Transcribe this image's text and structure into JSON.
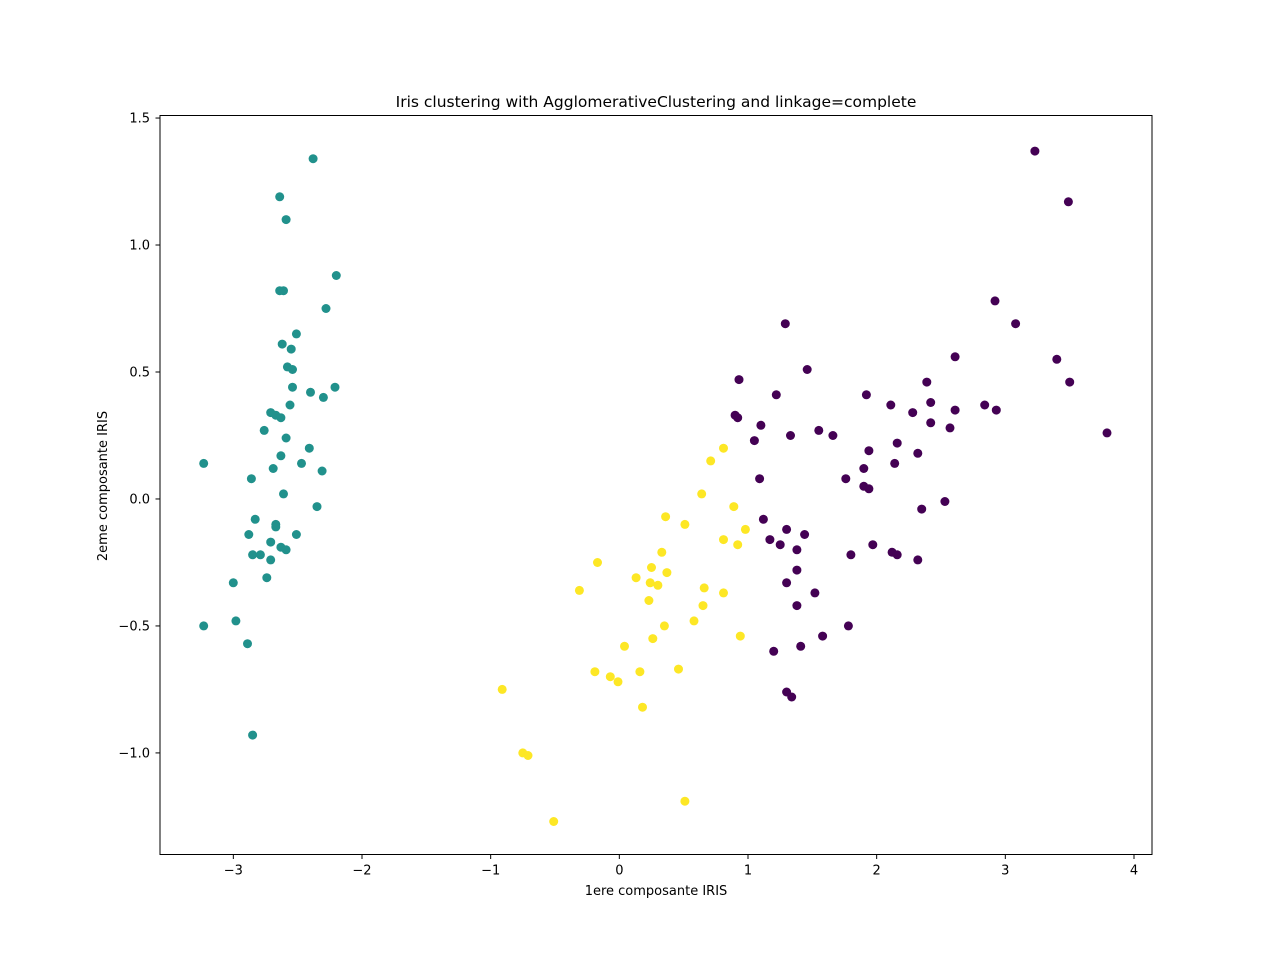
{
  "chart_data": {
    "type": "scatter",
    "title": "Iris clustering with AgglomerativeClustering and linkage=complete",
    "xlabel": "1ere composante IRIS",
    "ylabel": "2eme composante IRIS",
    "xlim": [
      -3.57,
      4.14
    ],
    "ylim": [
      -1.4,
      1.51
    ],
    "xticks": [
      -3,
      -2,
      -1,
      0,
      1,
      2,
      3,
      4
    ],
    "yticks": [
      -1.0,
      -0.5,
      0.0,
      0.5,
      1.0,
      1.5
    ],
    "xtick_labels": [
      "−3",
      "−2",
      "−1",
      "0",
      "1",
      "2",
      "3",
      "4"
    ],
    "ytick_labels": [
      "−1.0",
      "−0.5",
      "0.0",
      "0.5",
      "1.0",
      "1.5"
    ],
    "grid": false,
    "legend": "none",
    "series": [
      {
        "color": "#21918c",
        "points": [
          [
            -2.38,
            1.34
          ],
          [
            -2.64,
            1.19
          ],
          [
            -2.59,
            1.1
          ],
          [
            -2.2,
            0.88
          ],
          [
            -2.64,
            0.82
          ],
          [
            -2.61,
            0.82
          ],
          [
            -2.28,
            0.75
          ],
          [
            -2.51,
            0.65
          ],
          [
            -2.62,
            0.61
          ],
          [
            -2.55,
            0.59
          ],
          [
            -2.58,
            0.52
          ],
          [
            -2.54,
            0.51
          ],
          [
            -2.54,
            0.44
          ],
          [
            -2.21,
            0.44
          ],
          [
            -2.4,
            0.42
          ],
          [
            -2.3,
            0.4
          ],
          [
            -2.56,
            0.37
          ],
          [
            -2.71,
            0.34
          ],
          [
            -2.67,
            0.33
          ],
          [
            -2.63,
            0.32
          ],
          [
            -2.76,
            0.27
          ],
          [
            -2.59,
            0.24
          ],
          [
            -2.41,
            0.2
          ],
          [
            -3.23,
            0.14
          ],
          [
            -2.63,
            0.17
          ],
          [
            -2.47,
            0.14
          ],
          [
            -2.69,
            0.12
          ],
          [
            -2.31,
            0.11
          ],
          [
            -2.86,
            0.08
          ],
          [
            -2.61,
            0.02
          ],
          [
            -2.35,
            -0.03
          ],
          [
            -2.83,
            -0.08
          ],
          [
            -2.67,
            -0.1
          ],
          [
            -2.67,
            -0.11
          ],
          [
            -2.88,
            -0.14
          ],
          [
            -2.51,
            -0.14
          ],
          [
            -2.71,
            -0.17
          ],
          [
            -2.63,
            -0.19
          ],
          [
            -2.59,
            -0.2
          ],
          [
            -2.85,
            -0.22
          ],
          [
            -2.79,
            -0.22
          ],
          [
            -2.71,
            -0.24
          ],
          [
            -2.74,
            -0.31
          ],
          [
            -3.0,
            -0.33
          ],
          [
            -2.98,
            -0.48
          ],
          [
            -3.23,
            -0.5
          ],
          [
            -2.89,
            -0.57
          ],
          [
            -2.85,
            -0.93
          ]
        ]
      },
      {
        "color": "#fde725",
        "points": [
          [
            0.71,
            0.15
          ],
          [
            0.81,
            0.2
          ],
          [
            0.64,
            0.02
          ],
          [
            0.89,
            -0.03
          ],
          [
            0.36,
            -0.07
          ],
          [
            0.51,
            -0.1
          ],
          [
            0.98,
            -0.12
          ],
          [
            0.81,
            -0.16
          ],
          [
            0.92,
            -0.18
          ],
          [
            0.33,
            -0.21
          ],
          [
            -0.17,
            -0.25
          ],
          [
            0.25,
            -0.27
          ],
          [
            0.37,
            -0.29
          ],
          [
            0.13,
            -0.31
          ],
          [
            0.24,
            -0.33
          ],
          [
            0.3,
            -0.34
          ],
          [
            0.66,
            -0.35
          ],
          [
            -0.31,
            -0.36
          ],
          [
            0.81,
            -0.37
          ],
          [
            0.23,
            -0.4
          ],
          [
            0.65,
            -0.42
          ],
          [
            0.58,
            -0.48
          ],
          [
            0.35,
            -0.5
          ],
          [
            0.26,
            -0.55
          ],
          [
            0.94,
            -0.54
          ],
          [
            0.04,
            -0.58
          ],
          [
            0.46,
            -0.67
          ],
          [
            -0.19,
            -0.68
          ],
          [
            0.16,
            -0.68
          ],
          [
            -0.07,
            -0.7
          ],
          [
            -0.01,
            -0.72
          ],
          [
            -0.91,
            -0.75
          ],
          [
            0.18,
            -0.82
          ],
          [
            -0.75,
            -1.0
          ],
          [
            -0.71,
            -1.01
          ],
          [
            0.51,
            -1.19
          ],
          [
            -0.51,
            -1.27
          ]
        ]
      },
      {
        "color": "#440154",
        "points": [
          [
            3.23,
            1.37
          ],
          [
            3.49,
            1.17
          ],
          [
            2.92,
            0.78
          ],
          [
            1.29,
            0.69
          ],
          [
            3.08,
            0.69
          ],
          [
            2.61,
            0.56
          ],
          [
            3.4,
            0.55
          ],
          [
            1.46,
            0.51
          ],
          [
            0.93,
            0.47
          ],
          [
            2.39,
            0.46
          ],
          [
            3.5,
            0.46
          ],
          [
            1.22,
            0.41
          ],
          [
            1.92,
            0.41
          ],
          [
            2.42,
            0.38
          ],
          [
            2.11,
            0.37
          ],
          [
            2.84,
            0.37
          ],
          [
            2.93,
            0.35
          ],
          [
            2.61,
            0.35
          ],
          [
            2.28,
            0.34
          ],
          [
            0.9,
            0.33
          ],
          [
            0.92,
            0.32
          ],
          [
            2.42,
            0.3
          ],
          [
            1.1,
            0.29
          ],
          [
            2.57,
            0.28
          ],
          [
            1.55,
            0.27
          ],
          [
            3.79,
            0.26
          ],
          [
            1.33,
            0.25
          ],
          [
            1.66,
            0.25
          ],
          [
            1.05,
            0.23
          ],
          [
            2.16,
            0.22
          ],
          [
            1.94,
            0.19
          ],
          [
            2.32,
            0.18
          ],
          [
            2.14,
            0.14
          ],
          [
            1.9,
            0.12
          ],
          [
            1.09,
            0.08
          ],
          [
            1.76,
            0.08
          ],
          [
            1.9,
            0.05
          ],
          [
            1.94,
            0.04
          ],
          [
            2.53,
            -0.01
          ],
          [
            2.35,
            -0.04
          ],
          [
            1.12,
            -0.08
          ],
          [
            1.44,
            -0.14
          ],
          [
            1.3,
            -0.12
          ],
          [
            1.17,
            -0.16
          ],
          [
            1.25,
            -0.18
          ],
          [
            1.97,
            -0.18
          ],
          [
            1.38,
            -0.2
          ],
          [
            2.12,
            -0.21
          ],
          [
            2.16,
            -0.22
          ],
          [
            1.8,
            -0.22
          ],
          [
            2.32,
            -0.24
          ],
          [
            1.38,
            -0.28
          ],
          [
            1.3,
            -0.33
          ],
          [
            1.52,
            -0.37
          ],
          [
            1.38,
            -0.42
          ],
          [
            1.78,
            -0.5
          ],
          [
            1.58,
            -0.54
          ],
          [
            1.41,
            -0.58
          ],
          [
            1.2,
            -0.6
          ],
          [
            1.3,
            -0.76
          ],
          [
            1.34,
            -0.78
          ]
        ]
      }
    ]
  }
}
